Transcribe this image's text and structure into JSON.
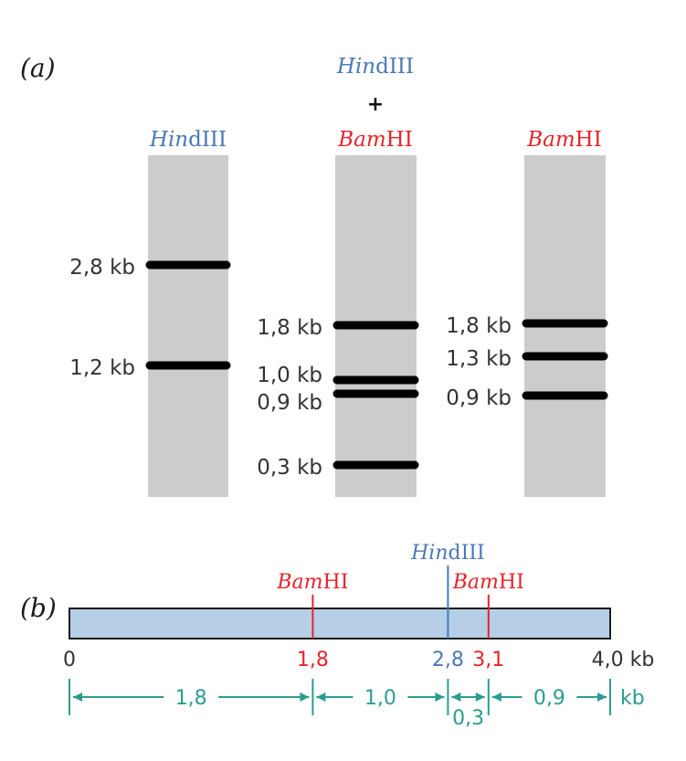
{
  "panel_a": {
    "label": "(a)",
    "lanes": [
      {
        "header": {
          "italic": "Hin",
          "rest": "dIII"
        }
      },
      {
        "header": {
          "line1_italic": "Hin",
          "line1_rest": "dIII",
          "plus": "+",
          "line3_italic": "Bam",
          "line3_rest": "HI"
        }
      },
      {
        "header": {
          "italic": "Bam",
          "rest": "HI"
        }
      }
    ],
    "bands": [
      {
        "lane": 0,
        "size_kb": 2.8,
        "label": "2,8 kb"
      },
      {
        "lane": 0,
        "size_kb": 1.2,
        "label": "1,2 kb"
      },
      {
        "lane": 1,
        "size_kb": 1.8,
        "label": "1,8 kb"
      },
      {
        "lane": 1,
        "size_kb": 1.0,
        "label": "1,0 kb"
      },
      {
        "lane": 1,
        "size_kb": 0.9,
        "label": "0,9 kb"
      },
      {
        "lane": 1,
        "size_kb": 0.3,
        "label": "0,3 kb"
      },
      {
        "lane": 2,
        "size_kb": 1.8,
        "label": "1,8 kb"
      },
      {
        "lane": 2,
        "size_kb": 1.3,
        "label": "1,3 kb"
      },
      {
        "lane": 2,
        "size_kb": 0.9,
        "label": "0,9 kb"
      }
    ]
  },
  "panel_b": {
    "label": "(b)",
    "length_kb": 4.0,
    "start_label": "0",
    "end_label": "4,0 kb",
    "sites": [
      {
        "pos_kb": 1.8,
        "enzyme_italic": "Bam",
        "enzyme_rest": "HI",
        "pos_label": "1,8"
      },
      {
        "pos_kb": 2.8,
        "enzyme_italic": "Hin",
        "enzyme_rest": "dIII",
        "pos_label": "2,8"
      },
      {
        "pos_kb": 3.1,
        "enzyme_italic": "Bam",
        "enzyme_rest": "HI",
        "pos_label": "3,1"
      }
    ],
    "segments": [
      {
        "from_kb": 0,
        "to_kb": 1.8,
        "label": "1,8"
      },
      {
        "from_kb": 1.8,
        "to_kb": 2.8,
        "label": "1,0"
      },
      {
        "from_kb": 2.8,
        "to_kb": 3.1,
        "label": "0,3"
      },
      {
        "from_kb": 3.1,
        "to_kb": 4.0,
        "label": "0,9"
      }
    ],
    "unit": "kb"
  },
  "colors": {
    "hindiii": "#4a78b8",
    "bamhi": "#e8232a",
    "gel": "#cccccc",
    "band": "#000000",
    "map_fill": "#b6cfe6",
    "measure": "#2a9d8f"
  }
}
